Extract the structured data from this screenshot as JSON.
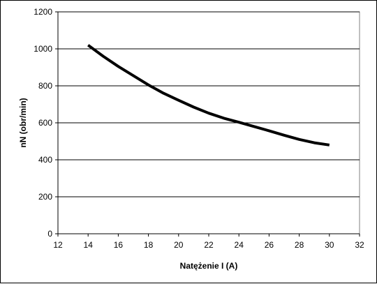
{
  "chart_data": {
    "type": "line",
    "xlabel": "Natężenie I (A)",
    "ylabel": "nN (obr/min)",
    "xlim": [
      12,
      32
    ],
    "ylim": [
      0,
      1200
    ],
    "x_ticks": [
      "12",
      "14",
      "16",
      "18",
      "20",
      "22",
      "24",
      "26",
      "28",
      "30",
      "32"
    ],
    "y_ticks": [
      "0",
      "200",
      "400",
      "600",
      "800",
      "1000",
      "1200"
    ],
    "grid": "horizontal",
    "legend": "none",
    "series": [
      {
        "color": "#000000",
        "x": [
          14.0,
          15,
          16,
          17,
          18,
          19,
          20,
          21,
          22,
          23,
          24,
          25,
          26,
          27,
          28,
          29,
          30.0
        ],
        "y": [
          1020,
          960,
          905,
          855,
          805,
          760,
          722,
          685,
          652,
          625,
          603,
          580,
          557,
          533,
          510,
          492,
          480
        ]
      }
    ]
  }
}
